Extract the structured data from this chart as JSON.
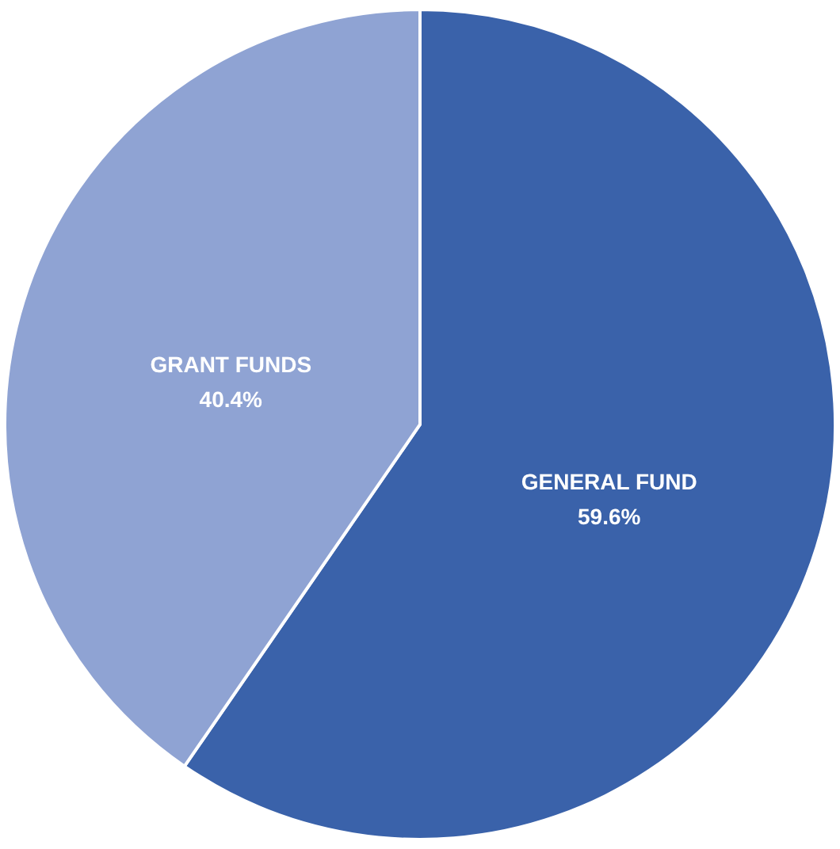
{
  "chart_data": {
    "type": "pie",
    "categories": [
      "GENERAL FUND",
      "GRANT FUNDS"
    ],
    "values": [
      59.6,
      40.4
    ],
    "colors": [
      "#3a62aa",
      "#8fa3d3"
    ],
    "value_labels": [
      "59.6%",
      "40.4%"
    ]
  }
}
